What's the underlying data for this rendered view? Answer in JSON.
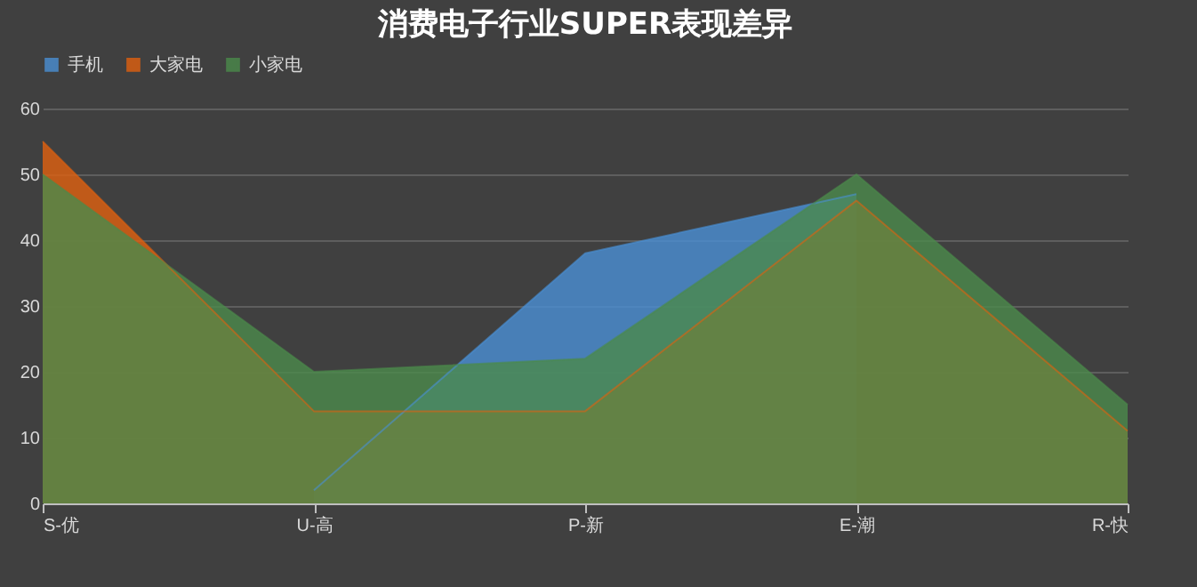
{
  "chart_data": {
    "type": "area",
    "title": "消费电子行业SUPER表现差异",
    "categories": [
      "S-优",
      "U-高",
      "P-新",
      "E-潮",
      "R-快"
    ],
    "series": [
      {
        "name": "手机",
        "color": "#4a8fd4",
        "values": [
          null,
          2,
          38,
          47,
          null
        ]
      },
      {
        "name": "大家电",
        "color": "#e0600f",
        "values": [
          55,
          14,
          14,
          46,
          11
        ]
      },
      {
        "name": "小家电",
        "color": "#4b8a4b",
        "values": [
          50,
          20,
          22,
          50,
          15
        ]
      }
    ],
    "ylim": [
      0,
      60
    ],
    "yticks": [
      0,
      10,
      20,
      30,
      40,
      50,
      60
    ],
    "grid": "y",
    "legend": "top"
  }
}
